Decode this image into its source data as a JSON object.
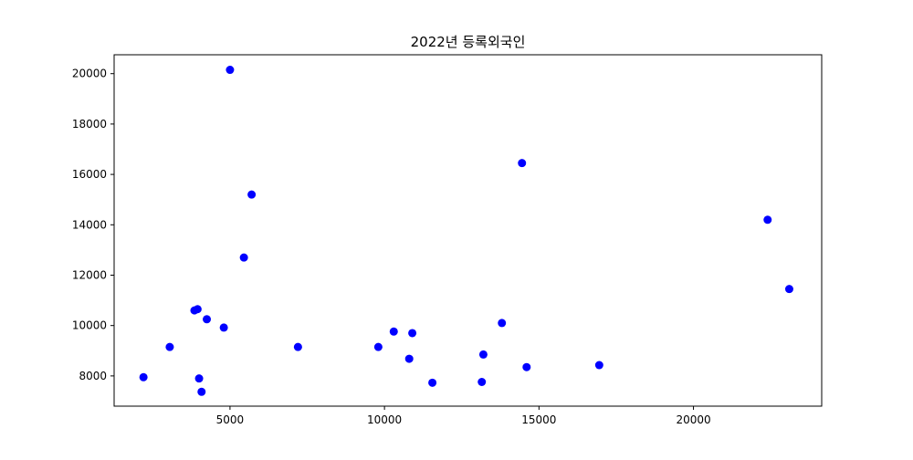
{
  "chart_data": {
    "type": "scatter",
    "title": "2022년 등록외국인",
    "xlabel": "",
    "ylabel": "",
    "xlim": [
      1250,
      24150
    ],
    "ylim": [
      6800,
      20750
    ],
    "xticks": [
      5000,
      10000,
      15000,
      20000
    ],
    "yticks": [
      8000,
      10000,
      12000,
      14000,
      16000,
      18000,
      20000
    ],
    "grid": false,
    "marker_color": "#0000ff",
    "points": [
      {
        "x": 2200,
        "y": 7950
      },
      {
        "x": 3050,
        "y": 9150
      },
      {
        "x": 3850,
        "y": 10600
      },
      {
        "x": 3950,
        "y": 10650
      },
      {
        "x": 4000,
        "y": 7900
      },
      {
        "x": 4080,
        "y": 7370
      },
      {
        "x": 4250,
        "y": 10250
      },
      {
        "x": 4800,
        "y": 9920
      },
      {
        "x": 5000,
        "y": 20150
      },
      {
        "x": 5450,
        "y": 12700
      },
      {
        "x": 5700,
        "y": 15200
      },
      {
        "x": 7200,
        "y": 9150
      },
      {
        "x": 9800,
        "y": 9150
      },
      {
        "x": 10300,
        "y": 9760
      },
      {
        "x": 10800,
        "y": 8680
      },
      {
        "x": 10900,
        "y": 9700
      },
      {
        "x": 11550,
        "y": 7730
      },
      {
        "x": 13150,
        "y": 7760
      },
      {
        "x": 13200,
        "y": 8850
      },
      {
        "x": 13800,
        "y": 10100
      },
      {
        "x": 14450,
        "y": 16450
      },
      {
        "x": 14600,
        "y": 8350
      },
      {
        "x": 16950,
        "y": 8430
      },
      {
        "x": 22400,
        "y": 14200
      },
      {
        "x": 23100,
        "y": 11450
      }
    ]
  }
}
